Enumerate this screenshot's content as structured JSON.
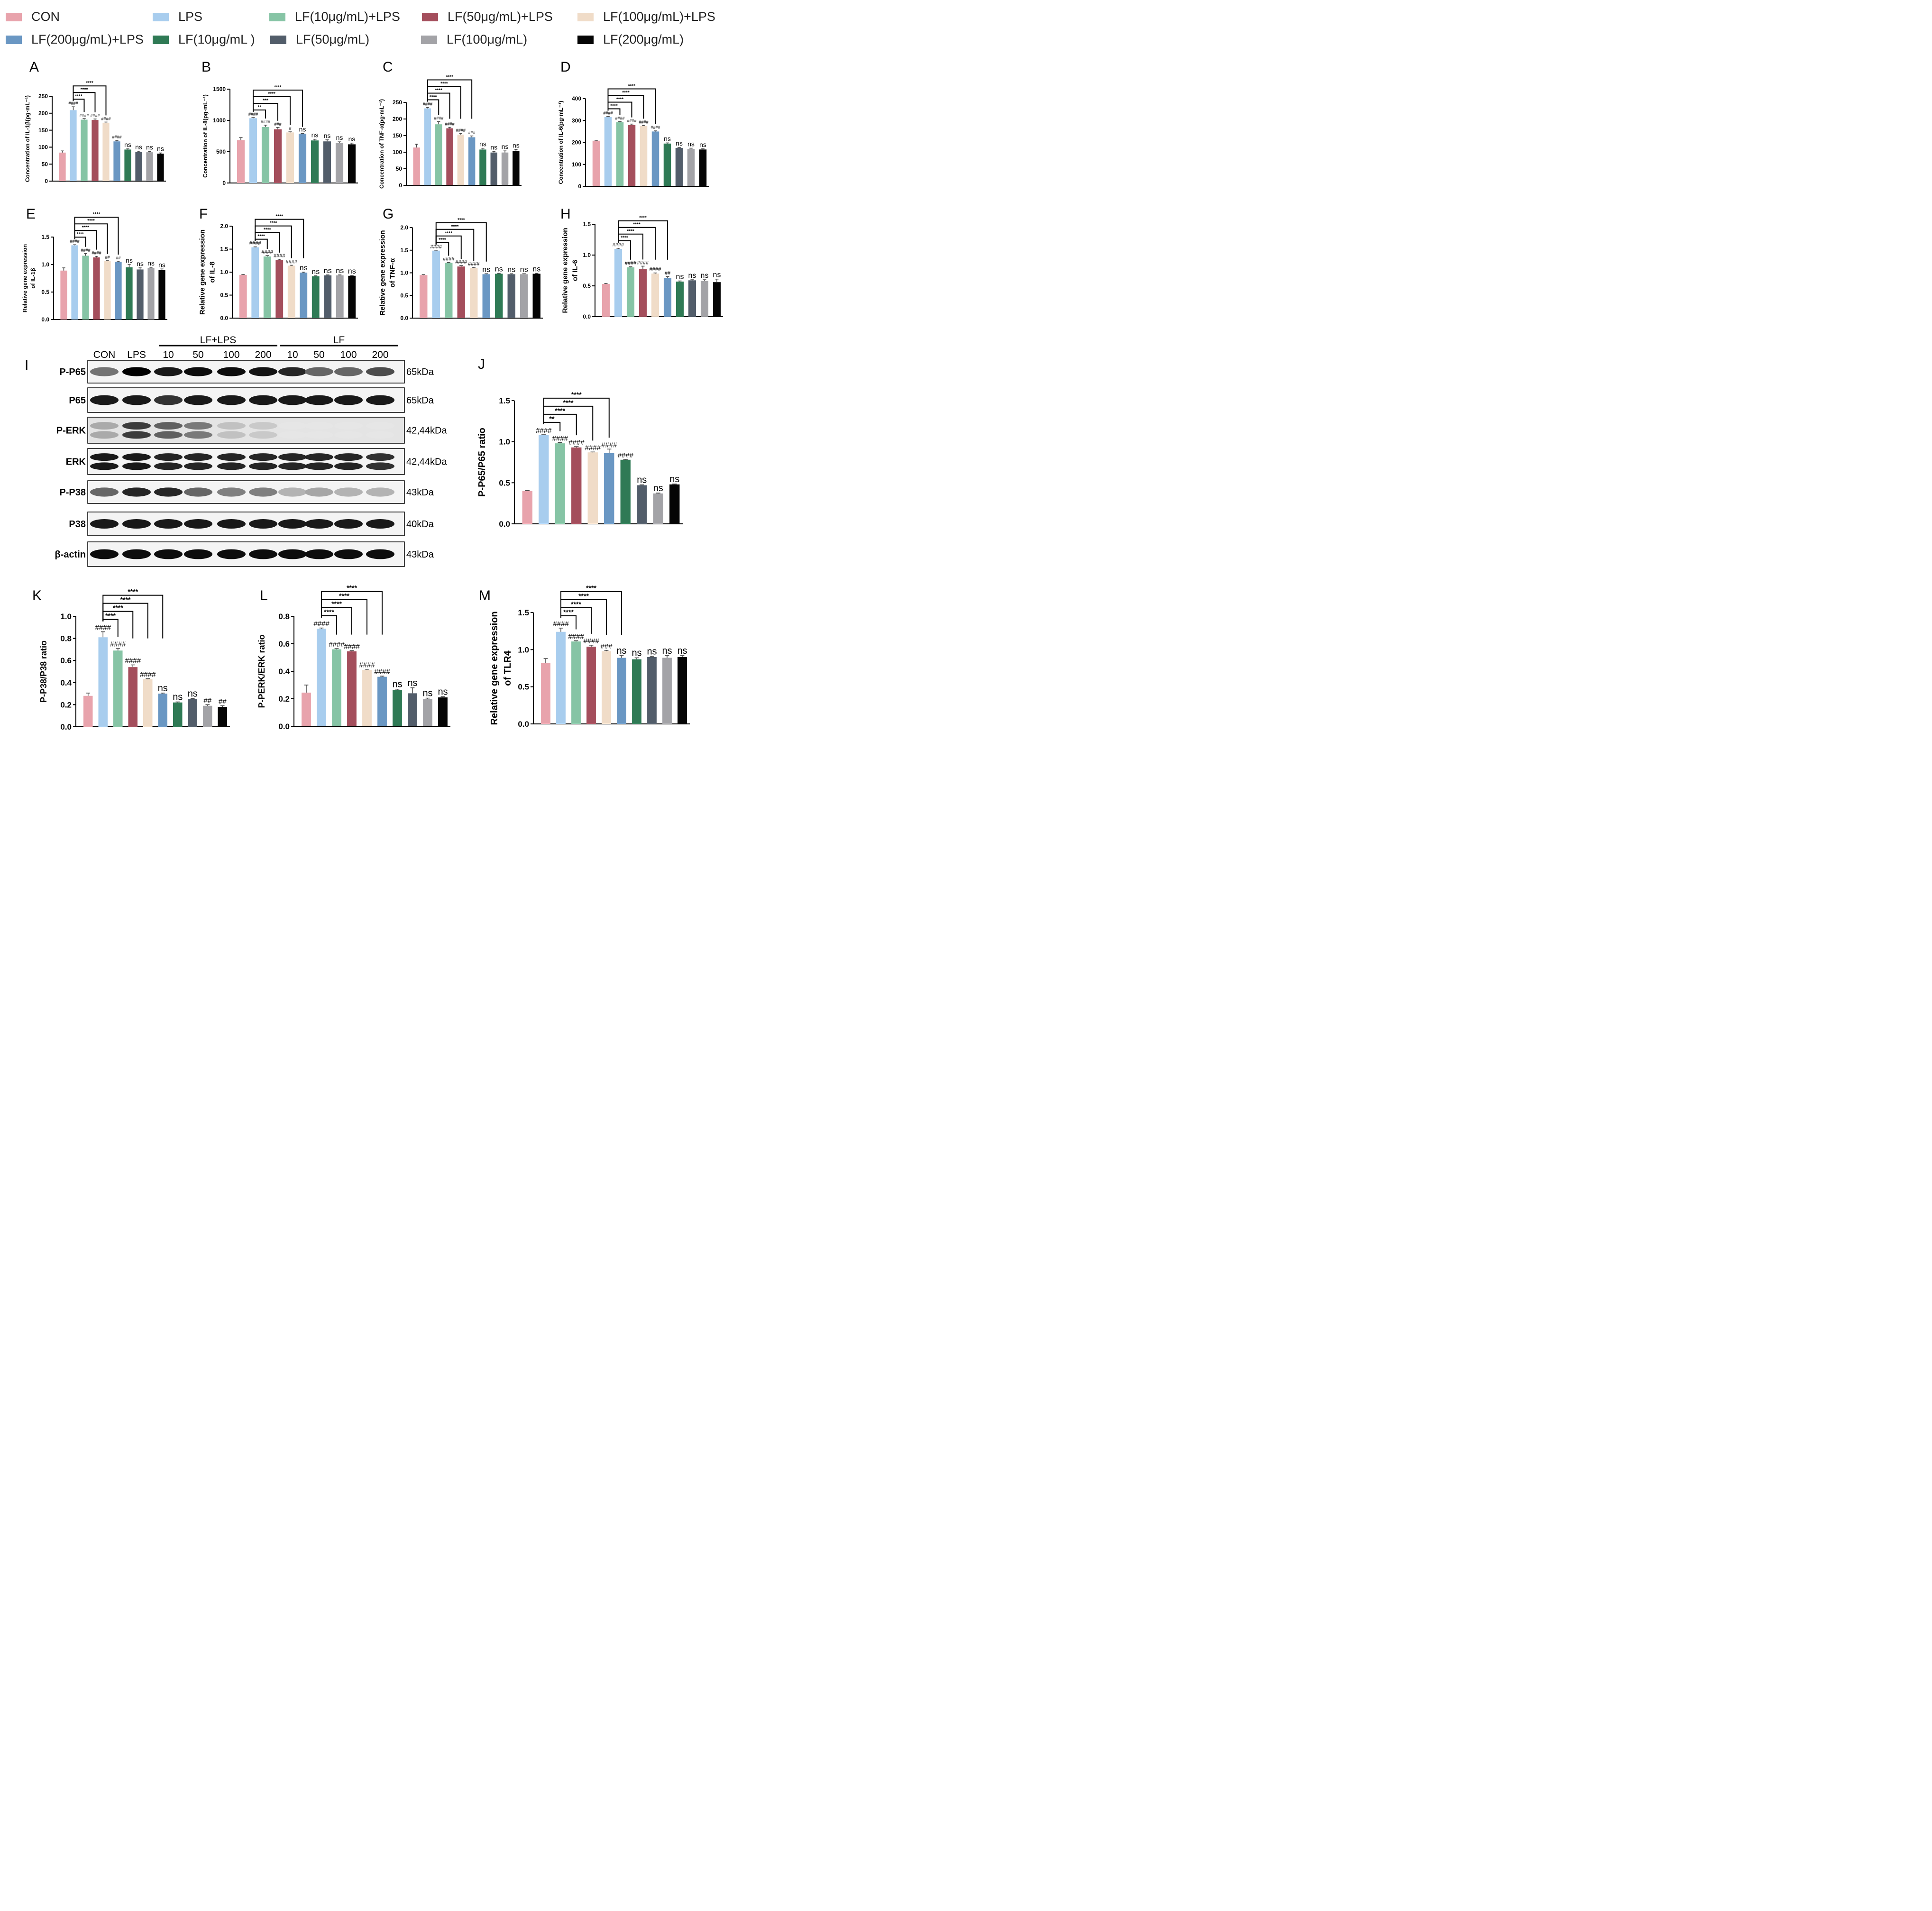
{
  "legend": [
    {
      "label": "CON",
      "color": "#e8a3ac"
    },
    {
      "label": "LPS",
      "color": "#a8cdee"
    },
    {
      "label": "LF(10μg/mL)+LPS",
      "color": "#86c4a5"
    },
    {
      "label": "LF(50μg/mL)+LPS",
      "color": "#a44e5c"
    },
    {
      "label": "LF(100μg/mL)+LPS",
      "color": "#f0dcc8"
    },
    {
      "label": "LF(200μg/mL)+LPS",
      "color": "#6a97c3"
    },
    {
      "label": "LF(10μg/mL )",
      "color": "#2f7a55"
    },
    {
      "label": "LF(50μg/mL)",
      "color": "#525d6a"
    },
    {
      "label": "LF(100μg/mL)",
      "color": "#a3a3a7"
    },
    {
      "label": "LF(200μg/mL)",
      "color": "#050505"
    }
  ],
  "blot": {
    "letter": "I",
    "group_labels": [
      "LF+LPS",
      "LF"
    ],
    "lane_labels": [
      "CON",
      "LPS",
      "10",
      "50",
      "100",
      "200",
      "10",
      "50",
      "100",
      "200"
    ],
    "rows": [
      {
        "protein": "P-P65",
        "size": "65kDa",
        "intensity": [
          0.55,
          1.0,
          0.9,
          0.95,
          0.95,
          0.92,
          0.85,
          0.6,
          0.6,
          0.7
        ]
      },
      {
        "protein": "P65",
        "size": "65kDa",
        "intensity": [
          0.9,
          0.9,
          0.8,
          0.9,
          0.9,
          0.9,
          0.9,
          0.9,
          0.9,
          0.9
        ]
      },
      {
        "protein": "P-ERK",
        "size": "42,44kDa",
        "intensity": [
          0.35,
          0.8,
          0.65,
          0.55,
          0.25,
          0.22,
          0.1,
          0.1,
          0.1,
          0.1
        ]
      },
      {
        "protein": "ERK",
        "size": "42,44kDa",
        "intensity": [
          0.95,
          0.95,
          0.9,
          0.9,
          0.9,
          0.9,
          0.9,
          0.9,
          0.9,
          0.85
        ]
      },
      {
        "protein": "P-P38",
        "size": "43kDa",
        "intensity": [
          0.6,
          0.85,
          0.85,
          0.6,
          0.5,
          0.5,
          0.3,
          0.35,
          0.3,
          0.3
        ]
      },
      {
        "protein": "P38",
        "size": "40kDa",
        "intensity": [
          0.9,
          0.9,
          0.9,
          0.9,
          0.9,
          0.9,
          0.9,
          0.9,
          0.9,
          0.9
        ]
      },
      {
        "protein": "β-actin",
        "size": "43kDa",
        "intensity": [
          0.95,
          0.95,
          0.95,
          0.95,
          0.95,
          0.95,
          0.95,
          0.95,
          0.95,
          0.95
        ]
      }
    ]
  },
  "chart_data": [
    {
      "panel": "A",
      "type": "bar",
      "ylabel": "Concentration of IL-1β(pg·mL⁻¹)",
      "ylim": [
        0,
        250
      ],
      "yticks": [
        0,
        50,
        100,
        150,
        200,
        250
      ],
      "values": [
        84,
        209,
        181,
        180,
        172,
        117,
        93,
        86,
        85,
        81
      ],
      "errors": [
        5,
        10,
        3,
        3,
        2,
        3,
        2,
        2,
        2,
        2
      ],
      "labels": [
        "",
        "####",
        "####",
        "####",
        "####",
        "####",
        "ns",
        "ns",
        "ns",
        "ns"
      ],
      "brackets": [
        {
          "to": 2,
          "label": "****"
        },
        {
          "to": 3,
          "label": "****"
        },
        {
          "to": 4,
          "label": "****"
        }
      ]
    },
    {
      "panel": "B",
      "type": "bar",
      "ylabel": "Concentration of IL-8(pg·mL⁻¹)",
      "ylim": [
        0,
        1500
      ],
      "yticks": [
        0,
        500,
        1000,
        1500
      ],
      "values": [
        685,
        1035,
        895,
        858,
        808,
        788,
        680,
        665,
        643,
        618
      ],
      "errors": [
        40,
        10,
        30,
        30,
        10,
        5,
        20,
        25,
        15,
        20
      ],
      "labels": [
        "",
        "####",
        "####",
        "###",
        "#",
        "ns",
        "ns",
        "ns",
        "ns",
        "ns"
      ],
      "brackets": [
        {
          "to": 2,
          "label": "**"
        },
        {
          "to": 3,
          "label": "***"
        },
        {
          "to": 4,
          "label": "****"
        },
        {
          "to": 5,
          "label": "****"
        }
      ]
    },
    {
      "panel": "C",
      "type": "bar",
      "ylabel": "Concentration of TNF-α(pg·mL⁻¹)",
      "ylim": [
        0,
        250
      ],
      "yticks": [
        0,
        50,
        100,
        150,
        200,
        250
      ],
      "values": [
        114,
        232,
        184,
        172,
        153,
        145,
        108,
        99,
        99,
        104
      ],
      "errors": [
        10,
        3,
        8,
        3,
        3,
        4,
        4,
        3,
        5,
        4
      ],
      "labels": [
        "",
        "####",
        "####",
        "####",
        "####",
        "###",
        "ns",
        "ns",
        "ns",
        "ns"
      ],
      "brackets": [
        {
          "to": 2,
          "label": "****"
        },
        {
          "to": 3,
          "label": "****"
        },
        {
          "to": 4,
          "label": "****"
        },
        {
          "to": 5,
          "label": "****"
        }
      ]
    },
    {
      "panel": "D",
      "type": "bar",
      "ylabel": "Concentration of IL-6(pg·mL⁻¹)",
      "ylim": [
        0,
        400
      ],
      "yticks": [
        0,
        100,
        200,
        300,
        400
      ],
      "values": [
        208,
        316,
        292,
        280,
        275,
        250,
        195,
        175,
        170,
        168
      ],
      "errors": [
        2,
        3,
        3,
        4,
        3,
        3,
        3,
        2,
        4,
        3
      ],
      "labels": [
        "",
        "####",
        "####",
        "####",
        "####",
        "####",
        "ns",
        "ns",
        "ns",
        "ns"
      ],
      "brackets": [
        {
          "to": 2,
          "label": "****"
        },
        {
          "to": 3,
          "label": "****"
        },
        {
          "to": 4,
          "label": "****"
        },
        {
          "to": 5,
          "label": "****"
        }
      ]
    },
    {
      "panel": "E",
      "type": "bar",
      "ylabel": "Relative gene expression of IL-1β",
      "ylim": [
        0,
        1.5
      ],
      "yticks": [
        0.0,
        0.5,
        1.0,
        1.5
      ],
      "values": [
        0.89,
        1.35,
        1.16,
        1.13,
        1.06,
        1.05,
        0.95,
        0.91,
        0.94,
        0.9
      ],
      "errors": [
        0.05,
        0.01,
        0.04,
        0.02,
        0.01,
        0.01,
        0.05,
        0.03,
        0.01,
        0.02
      ],
      "labels": [
        "",
        "####",
        "####",
        "####",
        "##",
        "##",
        "ns",
        "ns",
        "ns",
        "ns"
      ],
      "brackets": [
        {
          "to": 2,
          "label": "****"
        },
        {
          "to": 3,
          "label": "****"
        },
        {
          "to": 4,
          "label": "****"
        },
        {
          "to": 5,
          "label": "****"
        }
      ]
    },
    {
      "panel": "F",
      "type": "bar",
      "ylabel": "Relative gene expression of IL-8",
      "ylim": [
        0,
        2.0
      ],
      "yticks": [
        0.0,
        0.5,
        1.0,
        1.5,
        2.0
      ],
      "values": [
        0.94,
        1.54,
        1.34,
        1.26,
        1.14,
        0.99,
        0.91,
        0.93,
        0.93,
        0.92
      ],
      "errors": [
        0.01,
        0.01,
        0.02,
        0.02,
        0.01,
        0.01,
        0.01,
        0.01,
        0.01,
        0.01
      ],
      "labels": [
        "",
        "####",
        "####",
        "####",
        "####",
        "ns",
        "ns",
        "ns",
        "ns",
        "ns"
      ],
      "brackets": [
        {
          "to": 2,
          "label": "****"
        },
        {
          "to": 3,
          "label": "****"
        },
        {
          "to": 4,
          "label": "****"
        },
        {
          "to": 5,
          "label": "****"
        }
      ]
    },
    {
      "panel": "G",
      "type": "bar",
      "ylabel": "Relative gene expression of TNF-α",
      "ylim": [
        0,
        2.0
      ],
      "yticks": [
        0.0,
        0.5,
        1.0,
        1.5,
        2.0
      ],
      "values": [
        0.95,
        1.49,
        1.22,
        1.14,
        1.11,
        0.97,
        0.98,
        0.97,
        0.97,
        0.98
      ],
      "errors": [
        0.01,
        0.01,
        0.01,
        0.02,
        0.01,
        0.01,
        0.01,
        0.01,
        0.01,
        0.01
      ],
      "labels": [
        "",
        "####",
        "####",
        "####",
        "####",
        "ns",
        "ns",
        "ns",
        "ns",
        "ns"
      ],
      "brackets": [
        {
          "to": 2,
          "label": "****"
        },
        {
          "to": 3,
          "label": "****"
        },
        {
          "to": 4,
          "label": "****"
        },
        {
          "to": 5,
          "label": "****"
        }
      ]
    },
    {
      "panel": "H",
      "type": "bar",
      "ylabel": "Relative gene expression of IL-6",
      "ylim": [
        0,
        1.5
      ],
      "yticks": [
        0.0,
        0.5,
        1.0,
        1.5
      ],
      "values": [
        0.53,
        1.1,
        0.8,
        0.77,
        0.7,
        0.63,
        0.57,
        0.59,
        0.58,
        0.56
      ],
      "errors": [
        0.01,
        0.01,
        0.01,
        0.05,
        0.01,
        0.02,
        0.01,
        0.01,
        0.02,
        0.05
      ],
      "labels": [
        "",
        "####",
        "####",
        "####",
        "####",
        "##",
        "ns",
        "ns",
        "ns",
        "ns"
      ],
      "brackets": [
        {
          "to": 2,
          "label": "****"
        },
        {
          "to": 3,
          "label": "****"
        },
        {
          "to": 4,
          "label": "****"
        },
        {
          "to": 5,
          "label": "****"
        }
      ]
    },
    {
      "panel": "J",
      "type": "bar",
      "ylabel": "P-P65/P65 ratio",
      "ylim": [
        0,
        1.5
      ],
      "yticks": [
        0.0,
        0.5,
        1.0,
        1.5
      ],
      "values": [
        0.4,
        1.08,
        0.98,
        0.93,
        0.87,
        0.86,
        0.78,
        0.47,
        0.37,
        0.48
      ],
      "errors": [
        0.005,
        0.005,
        0.01,
        0.01,
        0.005,
        0.05,
        0.005,
        0.005,
        0.005,
        0.005
      ],
      "labels": [
        "",
        "####",
        "####",
        "####",
        "####",
        "####",
        "####",
        "ns",
        "ns",
        "ns"
      ],
      "brackets": [
        {
          "to": 2,
          "label": "**"
        },
        {
          "to": 3,
          "label": "****"
        },
        {
          "to": 4,
          "label": "****"
        },
        {
          "to": 5,
          "label": "****"
        }
      ]
    },
    {
      "panel": "K",
      "type": "bar",
      "ylabel": "P-P38/P38 ratio",
      "ylim": [
        0,
        1.0
      ],
      "yticks": [
        0.0,
        0.2,
        0.4,
        0.6,
        0.8,
        1.0
      ],
      "values": [
        0.28,
        0.81,
        0.69,
        0.54,
        0.43,
        0.3,
        0.22,
        0.25,
        0.19,
        0.18
      ],
      "errors": [
        0.025,
        0.05,
        0.02,
        0.02,
        0.005,
        0.005,
        0.005,
        0.005,
        0.01,
        0.01
      ],
      "labels": [
        "",
        "####",
        "####",
        "####",
        "####",
        "ns",
        "ns",
        "ns",
        "##",
        "##"
      ],
      "brackets": [
        {
          "to": 2,
          "label": "****"
        },
        {
          "to": 3,
          "label": "****"
        },
        {
          "to": 4,
          "label": "****"
        },
        {
          "to": 5,
          "label": "****"
        }
      ]
    },
    {
      "panel": "L",
      "type": "bar",
      "ylabel": "P-PERK/ERK ratio",
      "ylim": [
        0,
        0.8
      ],
      "yticks": [
        0.0,
        0.2,
        0.4,
        0.6,
        0.8
      ],
      "values": [
        0.245,
        0.71,
        0.56,
        0.545,
        0.41,
        0.36,
        0.265,
        0.24,
        0.2,
        0.21
      ],
      "errors": [
        0.055,
        0.005,
        0.005,
        0.005,
        0.005,
        0.005,
        0.005,
        0.04,
        0.005,
        0.005
      ],
      "labels": [
        "",
        "####",
        "####",
        "####",
        "####",
        "####",
        "ns",
        "ns",
        "ns",
        "ns"
      ],
      "brackets": [
        {
          "to": 2,
          "label": "****"
        },
        {
          "to": 3,
          "label": "****"
        },
        {
          "to": 4,
          "label": "****"
        },
        {
          "to": 5,
          "label": "****"
        }
      ]
    },
    {
      "panel": "M",
      "type": "bar",
      "ylabel": "Relative gene expression of TLR4",
      "ylim": [
        0,
        1.5
      ],
      "yticks": [
        0.0,
        0.5,
        1.0,
        1.5
      ],
      "values": [
        0.82,
        1.24,
        1.11,
        1.04,
        0.98,
        0.89,
        0.87,
        0.9,
        0.89,
        0.9
      ],
      "errors": [
        0.06,
        0.05,
        0.01,
        0.02,
        0.01,
        0.03,
        0.02,
        0.01,
        0.03,
        0.02
      ],
      "labels": [
        "",
        "####",
        "####",
        "####",
        "###",
        "ns",
        "ns",
        "ns",
        "ns",
        "ns"
      ],
      "brackets": [
        {
          "to": 2,
          "label": "****"
        },
        {
          "to": 3,
          "label": "****"
        },
        {
          "to": 4,
          "label": "****"
        },
        {
          "to": 5,
          "label": "****"
        }
      ]
    }
  ]
}
